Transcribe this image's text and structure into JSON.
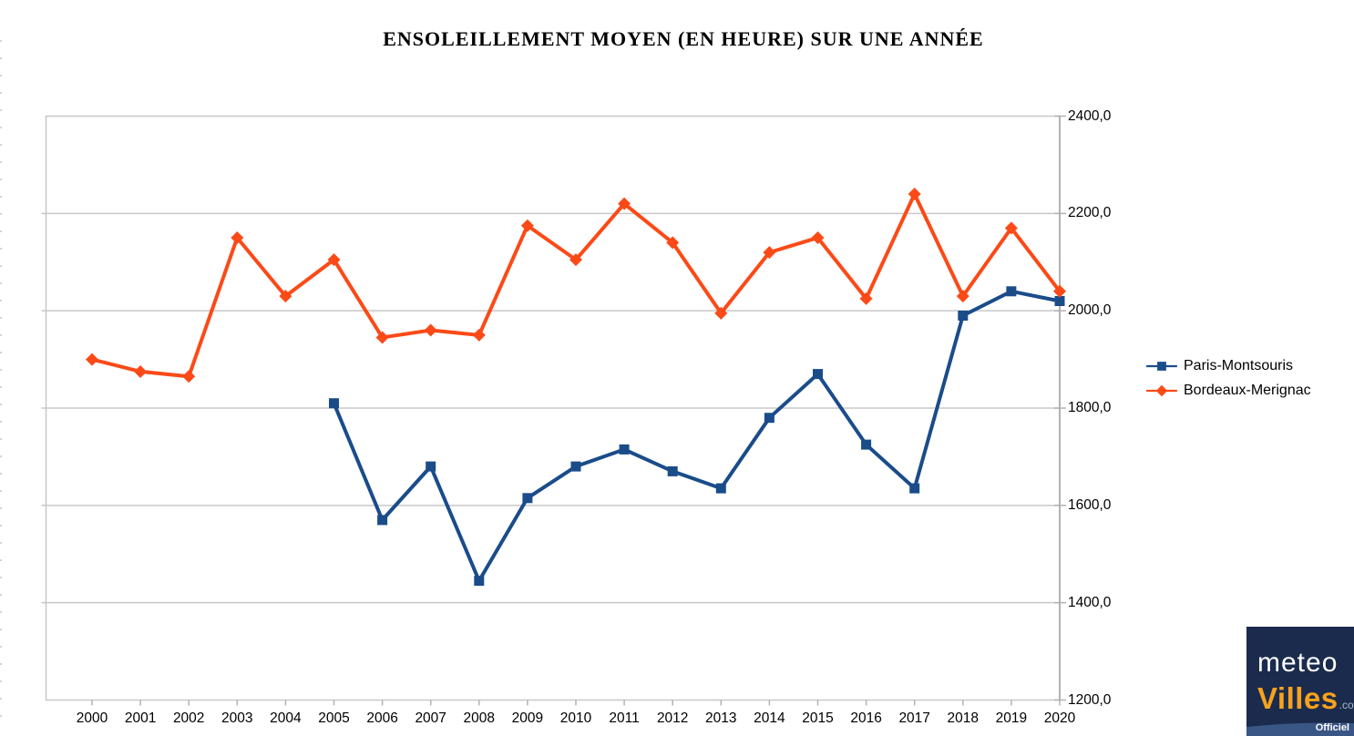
{
  "title": "ENSOLEILLEMENT MOYEN (EN HEURE) SUR UNE ANNÉE",
  "chart_data": {
    "type": "line",
    "title": "ENSOLEILLEMENT MOYEN (EN HEURE) SUR UNE ANNÉE",
    "categories": [
      "2000",
      "2001",
      "2002",
      "2003",
      "2004",
      "2005",
      "2006",
      "2007",
      "2008",
      "2009",
      "2010",
      "2011",
      "2012",
      "2013",
      "2014",
      "2015",
      "2016",
      "2017",
      "2018",
      "2019",
      "2020"
    ],
    "series": [
      {
        "name": "Paris-Montsouris",
        "color": "#1a4c8a",
        "marker": "square",
        "values": [
          null,
          null,
          null,
          null,
          null,
          1810,
          1570,
          1680,
          1445,
          1615,
          1680,
          1715,
          1670,
          1635,
          1780,
          1870,
          1725,
          1635,
          1990,
          2040,
          2020
        ]
      },
      {
        "name": "Bordeaux-Merignac",
        "color": "#fb4a17",
        "marker": "diamond",
        "values": [
          1900,
          1875,
          1865,
          2150,
          2030,
          2105,
          1945,
          1960,
          1950,
          2175,
          2105,
          2220,
          2140,
          1995,
          2120,
          2150,
          2025,
          2240,
          2030,
          2170,
          2040
        ]
      }
    ],
    "xlabel": "",
    "ylabel": "",
    "ylim": [
      1200,
      2400
    ],
    "y_ticks": [
      {
        "value": 2400,
        "label": "2400,0"
      },
      {
        "value": 2200,
        "label": "2200,0"
      },
      {
        "value": 2000,
        "label": "2000,0"
      },
      {
        "value": 1800,
        "label": "1800,0"
      },
      {
        "value": 1600,
        "label": "1600,0"
      },
      {
        "value": 1400,
        "label": "1400,0"
      },
      {
        "value": 1200,
        "label": "1200,0"
      }
    ],
    "grid": true,
    "legend_position": "right",
    "axis_colors": {
      "grid": "#c8c8c8",
      "axis": "#b2b2b2",
      "text": "#000000"
    }
  },
  "logo": {
    "meteo": "meteo",
    "villes": "Villes",
    "com": ".com",
    "officiel": "Officiel",
    "colors": {
      "background": "#1b2b4d",
      "villes": "#f7a21c",
      "com": "#a9b6c9",
      "band": "#3a5685"
    }
  }
}
